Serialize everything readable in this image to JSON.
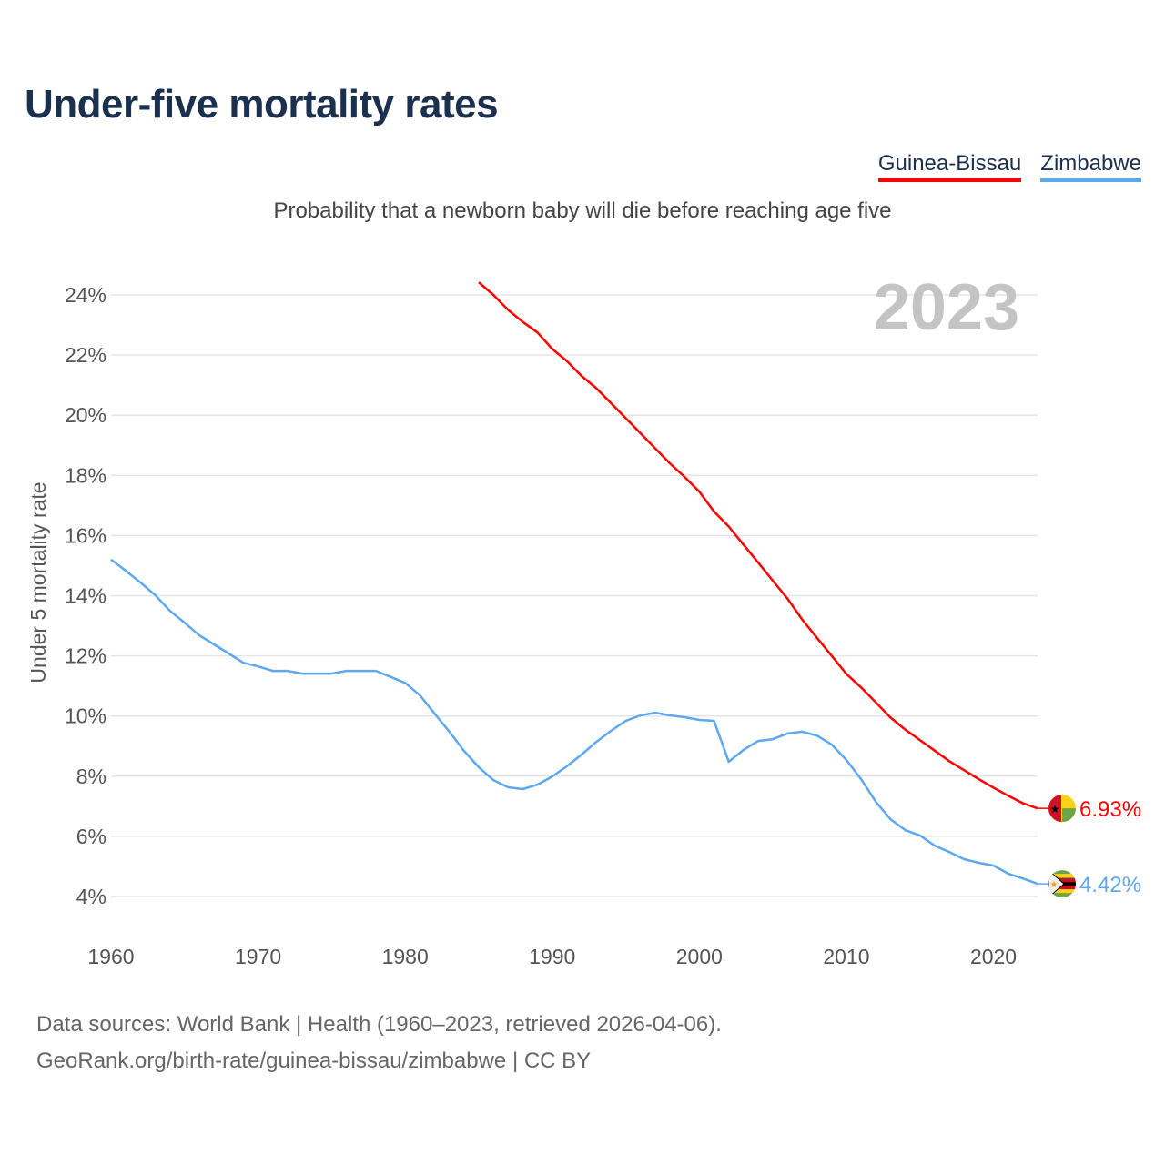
{
  "title": "Under-five mortality rates",
  "subtitle": "Probability that a newborn baby will die before reaching age five",
  "legend": [
    {
      "name": "Guinea-Bissau",
      "color": "#ff0000"
    },
    {
      "name": "Zimbabwe",
      "color": "#5ea8ee"
    }
  ],
  "footer": {
    "line1": "Data sources: World Bank | Health (1960–2023, retrieved 2026-04-06).",
    "line2": "GeoRank.org/birth-rate/guinea-bissau/zimbabwe | CC BY"
  },
  "chart_data": {
    "type": "line",
    "title": "Under-five mortality rates",
    "subtitle": "Probability that a newborn baby will die before reaching age five",
    "ylabel": "Under 5 mortality rate",
    "xlabel": "",
    "year_label": "2023",
    "xlim": [
      1960,
      2023
    ],
    "ylim": [
      3.2,
      24.8
    ],
    "xticks": [
      "1960",
      "1970",
      "1980",
      "1990",
      "2000",
      "2010",
      "2020"
    ],
    "xtick_values": [
      1960,
      1970,
      1980,
      1990,
      2000,
      2010,
      2020
    ],
    "yticks": [
      "4%",
      "6%",
      "8%",
      "10%",
      "12%",
      "14%",
      "16%",
      "18%",
      "20%",
      "22%",
      "24%"
    ],
    "ytick_values": [
      4,
      6,
      8,
      10,
      12,
      14,
      16,
      18,
      20,
      22,
      24
    ],
    "grid": true,
    "legend_position": "top-right",
    "series": [
      {
        "name": "Guinea-Bissau",
        "color": "#ff0000",
        "end_label": "6.93%",
        "start_year": 1985,
        "values": [
          24.42,
          24.0,
          23.5,
          23.1,
          22.75,
          22.2,
          21.8,
          21.3,
          20.9,
          20.4,
          19.9,
          19.4,
          18.9,
          18.4,
          17.95,
          17.46,
          16.8,
          16.3,
          15.7,
          15.1,
          14.5,
          13.9,
          13.2,
          12.6,
          12.0,
          11.4,
          10.95,
          10.45,
          9.95,
          9.55,
          9.2,
          8.85,
          8.5,
          8.2,
          7.9,
          7.62,
          7.35,
          7.1,
          6.93
        ]
      },
      {
        "name": "Zimbabwe",
        "color": "#5ea8ee",
        "end_label": "4.42%",
        "start_year": 1960,
        "values": [
          15.2,
          14.83,
          14.44,
          14.02,
          13.5,
          13.1,
          12.68,
          12.38,
          12.08,
          11.77,
          11.65,
          11.5,
          11.5,
          11.41,
          11.41,
          11.41,
          11.5,
          11.5,
          11.5,
          11.3,
          11.1,
          10.69,
          10.08,
          9.48,
          8.84,
          8.3,
          7.87,
          7.63,
          7.57,
          7.72,
          7.99,
          8.33,
          8.72,
          9.14,
          9.51,
          9.84,
          10.02,
          10.11,
          10.02,
          9.96,
          9.87,
          9.84,
          8.48,
          8.87,
          9.17,
          9.23,
          9.42,
          9.48,
          9.35,
          9.05,
          8.54,
          7.9,
          7.15,
          6.57,
          6.21,
          6.03,
          5.69,
          5.48,
          5.24,
          5.12,
          5.03,
          4.76,
          4.6,
          4.42
        ]
      }
    ]
  }
}
